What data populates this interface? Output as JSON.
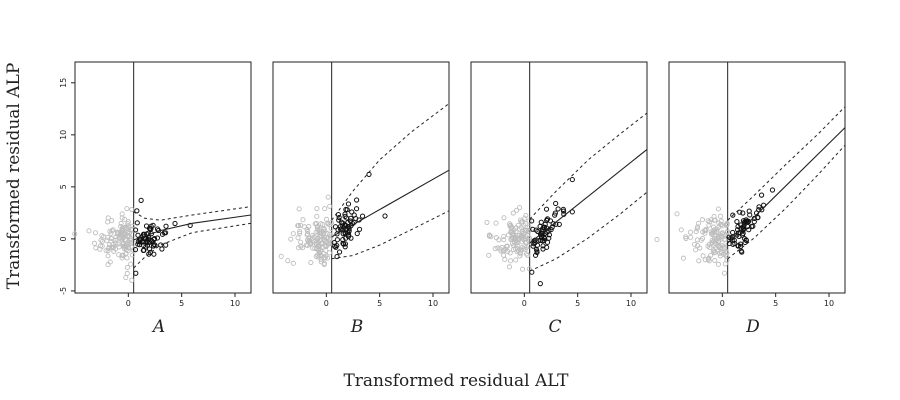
{
  "chart_data": {
    "type": "scatter",
    "xlabel": "Transformed residual ALT",
    "ylabel": "Transformed residual ALP",
    "xlim": [
      -5,
      11.5
    ],
    "ylim": [
      -5.2,
      17
    ],
    "xticks": [
      0,
      5,
      10
    ],
    "yticks": [
      -5,
      0,
      5,
      10,
      15
    ],
    "threshold_x": 0.5,
    "grid": false,
    "point_colors": {
      "below_threshold": "#bdbdbd",
      "above_threshold": "#111111"
    },
    "panels": [
      {
        "label": "A",
        "fit": [
          [
            0.5,
            -0.1
          ],
          [
            3,
            0.8
          ],
          [
            6,
            1.5
          ],
          [
            11.5,
            2.3
          ]
        ],
        "upper": [
          [
            0.5,
            2.6
          ],
          [
            1.5,
            2.0
          ],
          [
            3,
            1.8
          ],
          [
            6,
            2.3
          ],
          [
            11.5,
            3.1
          ]
        ],
        "lower": [
          [
            0.5,
            -2.8
          ],
          [
            1.5,
            -1.8
          ],
          [
            3,
            -0.6
          ],
          [
            6,
            0.6
          ],
          [
            11.5,
            1.5
          ]
        ],
        "highlight": [
          [
            5.8,
            1.3
          ],
          [
            3.5,
            -0.6
          ],
          [
            1.2,
            3.7
          ],
          [
            0.8,
            2.7
          ],
          [
            0.7,
            -3.3
          ]
        ]
      },
      {
        "label": "B",
        "fit": [
          [
            0.5,
            0.2
          ],
          [
            11.5,
            6.6
          ]
        ],
        "upper": [
          [
            0.5,
            1.8
          ],
          [
            2.5,
            4.6
          ],
          [
            5,
            7.6
          ],
          [
            8,
            10.3
          ],
          [
            11.5,
            13.0
          ]
        ],
        "lower": [
          [
            0.5,
            -1.9
          ],
          [
            2.5,
            -1.6
          ],
          [
            5,
            -0.6
          ],
          [
            8,
            0.9
          ],
          [
            11.5,
            2.7
          ]
        ],
        "highlight": [
          [
            4.0,
            6.2
          ],
          [
            5.5,
            2.2
          ],
          [
            1.0,
            -1.7
          ]
        ]
      },
      {
        "label": "C",
        "fit": [
          [
            0.5,
            -0.4
          ],
          [
            11.5,
            8.6
          ]
        ],
        "upper": [
          [
            0.5,
            1.9
          ],
          [
            3,
            4.6
          ],
          [
            6,
            7.6
          ],
          [
            9,
            10.1
          ],
          [
            11.5,
            12.1
          ]
        ],
        "lower": [
          [
            0.5,
            -3.1
          ],
          [
            3,
            -1.9
          ],
          [
            6,
            0.1
          ],
          [
            9,
            2.4
          ],
          [
            11.5,
            4.5
          ]
        ],
        "highlight": [
          [
            4.5,
            5.7
          ],
          [
            4.5,
            2.6
          ],
          [
            1.5,
            -4.3
          ],
          [
            0.7,
            -3.2
          ]
        ]
      },
      {
        "label": "D",
        "fit": [
          [
            0.5,
            -0.4
          ],
          [
            11.5,
            10.7
          ]
        ],
        "upper": [
          [
            0.5,
            1.8
          ],
          [
            3,
            4.2
          ],
          [
            6,
            7.2
          ],
          [
            9,
            10.1
          ],
          [
            11.5,
            12.7
          ]
        ],
        "lower": [
          [
            0.5,
            -1.9
          ],
          [
            3,
            0.1
          ],
          [
            6,
            3.0
          ],
          [
            9,
            6.2
          ],
          [
            11.5,
            9.0
          ]
        ],
        "highlight": [
          [
            4.7,
            4.7
          ],
          [
            3.7,
            2.8
          ],
          [
            2.0,
            1.0
          ]
        ]
      }
    ]
  }
}
